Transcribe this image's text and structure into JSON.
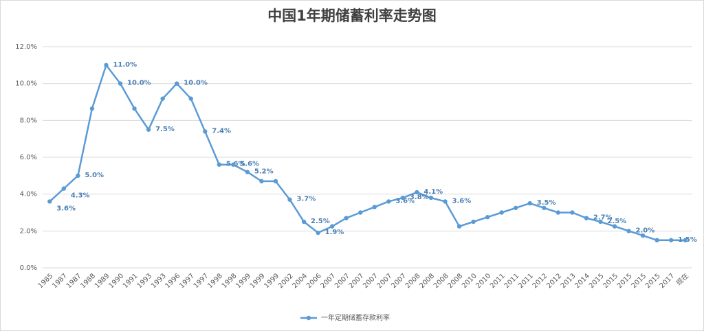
{
  "chart_data": {
    "type": "line",
    "title": "中国1年期储蓄利率走势图",
    "categories": [
      "1985",
      "1987",
      "1987",
      "1988",
      "1989",
      "1990",
      "1991",
      "1993",
      "1993",
      "1996",
      "1997",
      "1997",
      "1998",
      "1998",
      "1999",
      "1999",
      "1999",
      "2002",
      "2004",
      "2006",
      "2007",
      "2007",
      "2007",
      "2007",
      "2007",
      "2007",
      "2008",
      "2008",
      "2008",
      "2008",
      "2010",
      "2010",
      "2011",
      "2011",
      "2011",
      "2012",
      "2012",
      "2013",
      "2014",
      "2015",
      "2015",
      "2015",
      "2015",
      "2015",
      "2017",
      "现在"
    ],
    "series": [
      {
        "name": "一年定期储蓄存款利率",
        "color": "#5b9bd5",
        "values": [
          3.6,
          4.3,
          5.0,
          8.64,
          11.0,
          10.0,
          8.64,
          7.5,
          9.18,
          10.0,
          9.18,
          7.4,
          5.6,
          5.6,
          5.2,
          4.7,
          4.7,
          3.7,
          2.5,
          1.9,
          2.25,
          2.7,
          3.0,
          3.3,
          3.6,
          3.8,
          4.1,
          3.8,
          3.6,
          2.25,
          2.5,
          2.75,
          3.0,
          3.25,
          3.5,
          3.25,
          3.0,
          3.0,
          2.7,
          2.5,
          2.25,
          2.0,
          1.75,
          1.5,
          1.5,
          1.5
        ],
        "value_labels": [
          "3.6%",
          "4.3%",
          "5.0%",
          null,
          "11.0%",
          "10.0%",
          null,
          "7.5%",
          null,
          "10.0%",
          null,
          "7.4%",
          "5.6%",
          "5.6%",
          "5.2%",
          null,
          null,
          "3.7%",
          "2.5%",
          "1.9%",
          null,
          null,
          null,
          null,
          "3.6%",
          "3.8%",
          "4.1%",
          null,
          "3.6%",
          null,
          null,
          null,
          null,
          null,
          "3.5%",
          null,
          null,
          null,
          "2.7%",
          "2.5%",
          null,
          "2.0%",
          null,
          null,
          "1.5%",
          null
        ]
      }
    ],
    "ylim": [
      0,
      12
    ],
    "yticks": [
      {
        "value": 0,
        "label": "0.0%"
      },
      {
        "value": 2,
        "label": "2.0%"
      },
      {
        "value": 4,
        "label": "4.0%"
      },
      {
        "value": 6,
        "label": "6.0%"
      },
      {
        "value": 8,
        "label": "8.0%"
      },
      {
        "value": 10,
        "label": "10.0%"
      },
      {
        "value": 12,
        "label": "12.0%"
      }
    ],
    "grid": true,
    "legend": "bottom"
  }
}
